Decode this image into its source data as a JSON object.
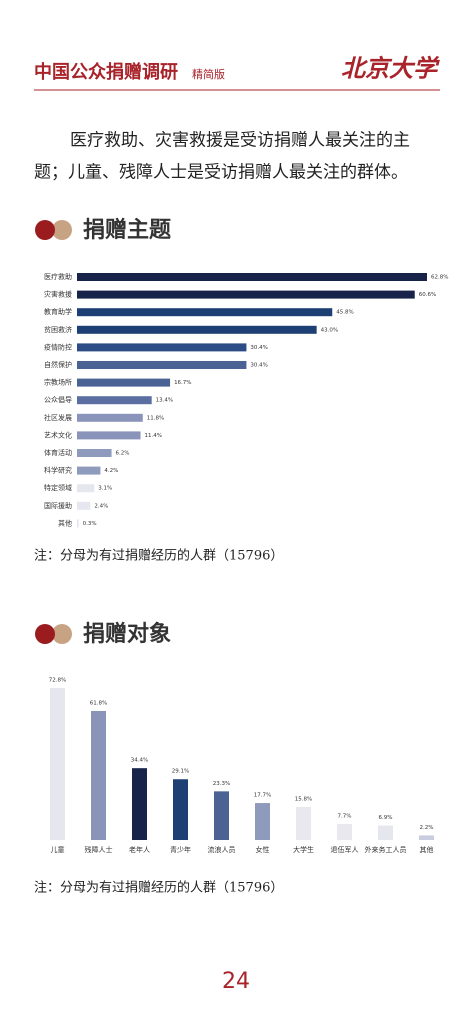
{
  "header": {
    "title": "中国公众捐赠调研",
    "subtitle": "精简版",
    "logo": "北京大学"
  },
  "paragraph": [
    "医疗救助、灾害救援是受访捐赠人最关注的主",
    "题；儿童、残障人士是受访捐赠人最关注的群体。"
  ],
  "chart_data": [
    {
      "type": "bar",
      "orientation": "horizontal",
      "title": "捐赠主题",
      "note": "注：分母为有过捐赠经历的人群（15796）",
      "categories": [
        "医疗救助",
        "灾害救援",
        "教育助学",
        "贫困救济",
        "疫情防控",
        "自然保护",
        "宗教场所",
        "公众倡导",
        "社区发展",
        "艺术文化",
        "体育活动",
        "科学研究",
        "特定领域",
        "国际援助",
        "其他"
      ],
      "values": [
        62.8,
        60.6,
        45.8,
        43.0,
        30.4,
        30.4,
        16.7,
        13.4,
        11.8,
        11.4,
        6.2,
        4.2,
        3.1,
        2.4,
        0.3
      ],
      "value_labels": [
        "62.8%",
        "60.6%",
        "45.8%",
        "43.0%",
        "30.4%",
        "30.4%",
        "16.7%",
        "13.4%",
        "11.8%",
        "11.4%",
        "6.2%",
        "4.2%",
        "3.1%",
        "2.4%",
        "0.3%"
      ],
      "colors": [
        "#18234a",
        "#18234a",
        "#1d3f73",
        "#1d3f73",
        "#2c4c86",
        "#4a6294",
        "#4a6294",
        "#5a6f9f",
        "#8a94ba",
        "#8a94ba",
        "#8f9bbd",
        "#8f9bbd",
        "#e6e6ee",
        "#e6e6ee",
        "#e6e6ee"
      ]
    },
    {
      "type": "bar",
      "orientation": "vertical",
      "title": "捐赠对象",
      "note": "注：分母为有过捐赠经历的人群（15796）",
      "categories": [
        "儿童",
        "残障人士",
        "老年人",
        "青少年",
        "流浪人员",
        "女性",
        "大学生",
        "退伍军人",
        "外来务工人员",
        "其他"
      ],
      "values": [
        72.8,
        61.8,
        34.4,
        29.1,
        23.3,
        17.7,
        15.8,
        7.7,
        6.9,
        2.2
      ],
      "value_labels": [
        "72.8%",
        "61.8%",
        "34.4%",
        "29.1%",
        "23.3%",
        "17.7%",
        "15.8%",
        "7.7%",
        "6.9%",
        "2.2%"
      ],
      "colors": [
        "#e6e6ee",
        "#8a93b8",
        "#18234a",
        "#1d3f73",
        "#4a6294",
        "#8f9bbd",
        "#e8e8ee",
        "#e8e8ee",
        "#e6e6ee",
        "#c9cde0"
      ]
    }
  ],
  "page_number": "24"
}
